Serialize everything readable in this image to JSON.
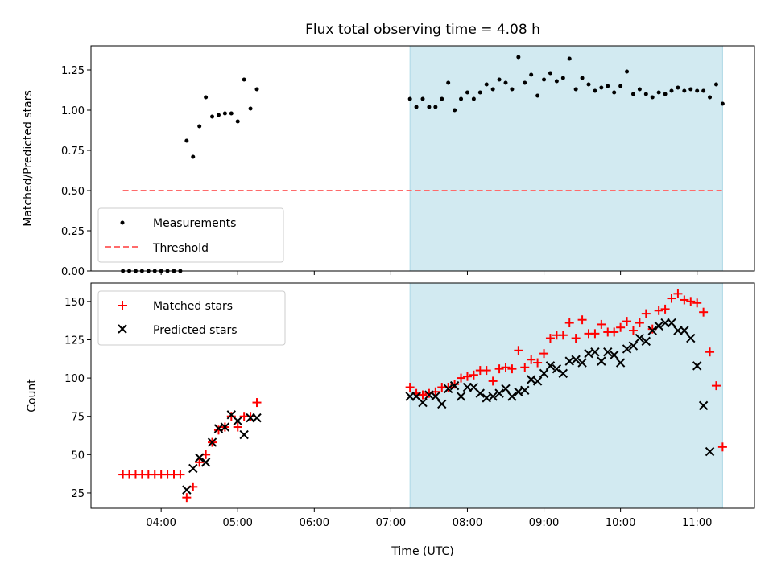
{
  "title": "Flux total observing time = 4.08 h",
  "colors": {
    "shade": "#add8e6",
    "measurement": "#000000",
    "threshold": "#ff6b6b",
    "matched": "#ff0000",
    "predicted": "#000000"
  },
  "chart_data": [
    {
      "type": "scatter",
      "ylabel": "Matched/Predicted stars",
      "ylim": [
        0,
        1.4
      ],
      "yticks": [
        0,
        0.25,
        0.5,
        0.75,
        1.0,
        1.25
      ],
      "ytick_labels": [
        "0.00",
        "0.25",
        "0.50",
        "0.75",
        "1.00",
        "1.25"
      ],
      "legend_position": "lower-left",
      "shaded_interval": [
        "07:15",
        "11:20"
      ],
      "series": [
        {
          "name": "Measurements",
          "marker": "dot",
          "points": [
            [
              "03:30",
              0.0
            ],
            [
              "03:35",
              0.0
            ],
            [
              "03:40",
              0.0
            ],
            [
              "03:45",
              0.0
            ],
            [
              "03:50",
              0.0
            ],
            [
              "03:55",
              0.0
            ],
            [
              "04:00",
              0.0
            ],
            [
              "04:05",
              0.0
            ],
            [
              "04:10",
              0.0
            ],
            [
              "04:15",
              0.0
            ],
            [
              "04:20",
              0.81
            ],
            [
              "04:25",
              0.71
            ],
            [
              "04:30",
              0.9
            ],
            [
              "04:35",
              1.08
            ],
            [
              "04:40",
              0.96
            ],
            [
              "04:45",
              0.97
            ],
            [
              "04:50",
              0.98
            ],
            [
              "04:55",
              0.98
            ],
            [
              "05:00",
              0.93
            ],
            [
              "05:05",
              1.19
            ],
            [
              "05:10",
              1.01
            ],
            [
              "05:15",
              1.13
            ],
            [
              "07:15",
              1.07
            ],
            [
              "07:20",
              1.02
            ],
            [
              "07:25",
              1.07
            ],
            [
              "07:30",
              1.02
            ],
            [
              "07:35",
              1.02
            ],
            [
              "07:40",
              1.07
            ],
            [
              "07:45",
              1.17
            ],
            [
              "07:50",
              1.0
            ],
            [
              "07:55",
              1.07
            ],
            [
              "08:00",
              1.11
            ],
            [
              "08:05",
              1.07
            ],
            [
              "08:10",
              1.11
            ],
            [
              "08:15",
              1.16
            ],
            [
              "08:20",
              1.13
            ],
            [
              "08:25",
              1.19
            ],
            [
              "08:30",
              1.17
            ],
            [
              "08:35",
              1.13
            ],
            [
              "08:40",
              1.33
            ],
            [
              "08:45",
              1.17
            ],
            [
              "08:50",
              1.22
            ],
            [
              "08:55",
              1.09
            ],
            [
              "09:00",
              1.19
            ],
            [
              "09:05",
              1.23
            ],
            [
              "09:10",
              1.18
            ],
            [
              "09:15",
              1.2
            ],
            [
              "09:20",
              1.32
            ],
            [
              "09:25",
              1.13
            ],
            [
              "09:30",
              1.2
            ],
            [
              "09:35",
              1.16
            ],
            [
              "09:40",
              1.12
            ],
            [
              "09:45",
              1.14
            ],
            [
              "09:50",
              1.15
            ],
            [
              "09:55",
              1.11
            ],
            [
              "10:00",
              1.15
            ],
            [
              "10:05",
              1.24
            ],
            [
              "10:10",
              1.1
            ],
            [
              "10:15",
              1.13
            ],
            [
              "10:20",
              1.1
            ],
            [
              "10:25",
              1.08
            ],
            [
              "10:30",
              1.11
            ],
            [
              "10:35",
              1.1
            ],
            [
              "10:40",
              1.12
            ],
            [
              "10:45",
              1.14
            ],
            [
              "10:50",
              1.12
            ],
            [
              "10:55",
              1.13
            ],
            [
              "11:00",
              1.12
            ],
            [
              "11:05",
              1.12
            ],
            [
              "11:10",
              1.08
            ],
            [
              "11:15",
              1.16
            ],
            [
              "11:20",
              1.04
            ]
          ]
        },
        {
          "name": "Threshold",
          "marker": "dashed-line",
          "points": [
            [
              "03:30",
              0.5
            ],
            [
              "11:20",
              0.5
            ]
          ]
        }
      ]
    },
    {
      "type": "scatter",
      "xlabel": "Time (UTC)",
      "ylabel": "Count",
      "ylim": [
        15,
        162
      ],
      "yticks": [
        25,
        50,
        75,
        100,
        125,
        150
      ],
      "ytick_labels": [
        "25",
        "50",
        "75",
        "100",
        "125",
        "150"
      ],
      "xticks": [
        "04:00",
        "05:00",
        "06:00",
        "07:00",
        "08:00",
        "09:00",
        "10:00",
        "11:00"
      ],
      "xlim": [
        "03:05",
        "11:45"
      ],
      "legend_position": "top-left",
      "shaded_interval": [
        "07:15",
        "11:20"
      ],
      "series": [
        {
          "name": "Matched stars",
          "marker": "plus",
          "points": [
            [
              "03:30",
              37
            ],
            [
              "03:35",
              37
            ],
            [
              "03:40",
              37
            ],
            [
              "03:45",
              37
            ],
            [
              "03:50",
              37
            ],
            [
              "03:55",
              37
            ],
            [
              "04:00",
              37
            ],
            [
              "04:05",
              37
            ],
            [
              "04:10",
              37
            ],
            [
              "04:15",
              37
            ],
            [
              "04:20",
              22
            ],
            [
              "04:25",
              29
            ],
            [
              "04:30",
              45
            ],
            [
              "04:35",
              50
            ],
            [
              "04:40",
              58
            ],
            [
              "04:45",
              66
            ],
            [
              "04:50",
              68
            ],
            [
              "04:55",
              75
            ],
            [
              "05:00",
              68
            ],
            [
              "05:05",
              75
            ],
            [
              "05:10",
              75
            ],
            [
              "05:15",
              84
            ],
            [
              "07:15",
              94
            ],
            [
              "07:20",
              90
            ],
            [
              "07:25",
              89
            ],
            [
              "07:30",
              90
            ],
            [
              "07:35",
              91
            ],
            [
              "07:40",
              94
            ],
            [
              "07:45",
              94
            ],
            [
              "07:50",
              96
            ],
            [
              "07:55",
              100
            ],
            [
              "08:00",
              101
            ],
            [
              "08:05",
              102
            ],
            [
              "08:10",
              105
            ],
            [
              "08:15",
              105
            ],
            [
              "08:20",
              98
            ],
            [
              "08:25",
              106
            ],
            [
              "08:30",
              107
            ],
            [
              "08:35",
              106
            ],
            [
              "08:40",
              118
            ],
            [
              "08:45",
              107
            ],
            [
              "08:50",
              112
            ],
            [
              "08:55",
              110
            ],
            [
              "09:00",
              116
            ],
            [
              "09:05",
              126
            ],
            [
              "09:10",
              128
            ],
            [
              "09:15",
              128
            ],
            [
              "09:20",
              136
            ],
            [
              "09:25",
              126
            ],
            [
              "09:30",
              138
            ],
            [
              "09:35",
              129
            ],
            [
              "09:40",
              129
            ],
            [
              "09:45",
              135
            ],
            [
              "09:50",
              130
            ],
            [
              "09:55",
              130
            ],
            [
              "10:00",
              133
            ],
            [
              "10:05",
              137
            ],
            [
              "10:10",
              131
            ],
            [
              "10:15",
              136
            ],
            [
              "10:20",
              142
            ],
            [
              "10:25",
              132
            ],
            [
              "10:30",
              144
            ],
            [
              "10:35",
              145
            ],
            [
              "10:40",
              152
            ],
            [
              "10:45",
              155
            ],
            [
              "10:50",
              151
            ],
            [
              "10:55",
              150
            ],
            [
              "11:00",
              149
            ],
            [
              "11:05",
              143
            ],
            [
              "11:10",
              117
            ],
            [
              "11:15",
              95
            ],
            [
              "11:20",
              55
            ]
          ]
        },
        {
          "name": "Predicted stars",
          "marker": "x",
          "points": [
            [
              "04:20",
              27
            ],
            [
              "04:25",
              41
            ],
            [
              "04:30",
              48
            ],
            [
              "04:35",
              45
            ],
            [
              "04:40",
              58
            ],
            [
              "04:45",
              67
            ],
            [
              "04:50",
              68
            ],
            [
              "04:55",
              76
            ],
            [
              "05:00",
              72
            ],
            [
              "05:05",
              63
            ],
            [
              "05:10",
              74
            ],
            [
              "05:15",
              74
            ],
            [
              "07:15",
              88
            ],
            [
              "07:20",
              88
            ],
            [
              "07:25",
              84
            ],
            [
              "07:30",
              89
            ],
            [
              "07:35",
              88
            ],
            [
              "07:40",
              83
            ],
            [
              "07:45",
              93
            ],
            [
              "07:50",
              95
            ],
            [
              "07:55",
              88
            ],
            [
              "08:00",
              94
            ],
            [
              "08:05",
              94
            ],
            [
              "08:10",
              90
            ],
            [
              "08:15",
              87
            ],
            [
              "08:20",
              88
            ],
            [
              "08:25",
              90
            ],
            [
              "08:30",
              93
            ],
            [
              "08:35",
              88
            ],
            [
              "08:40",
              91
            ],
            [
              "08:45",
              92
            ],
            [
              "08:50",
              99
            ],
            [
              "08:55",
              98
            ],
            [
              "09:00",
              103
            ],
            [
              "09:05",
              108
            ],
            [
              "09:10",
              106
            ],
            [
              "09:15",
              103
            ],
            [
              "09:20",
              111
            ],
            [
              "09:25",
              112
            ],
            [
              "09:30",
              110
            ],
            [
              "09:35",
              116
            ],
            [
              "09:40",
              117
            ],
            [
              "09:45",
              111
            ],
            [
              "09:50",
              117
            ],
            [
              "09:55",
              115
            ],
            [
              "10:00",
              110
            ],
            [
              "10:05",
              119
            ],
            [
              "10:10",
              121
            ],
            [
              "10:15",
              126
            ],
            [
              "10:20",
              124
            ],
            [
              "10:25",
              131
            ],
            [
              "10:30",
              134
            ],
            [
              "10:35",
              136
            ],
            [
              "10:40",
              136
            ],
            [
              "10:45",
              131
            ],
            [
              "10:50",
              131
            ],
            [
              "10:55",
              126
            ],
            [
              "11:00",
              108
            ],
            [
              "11:05",
              82
            ],
            [
              "11:10",
              52
            ]
          ]
        }
      ]
    }
  ]
}
